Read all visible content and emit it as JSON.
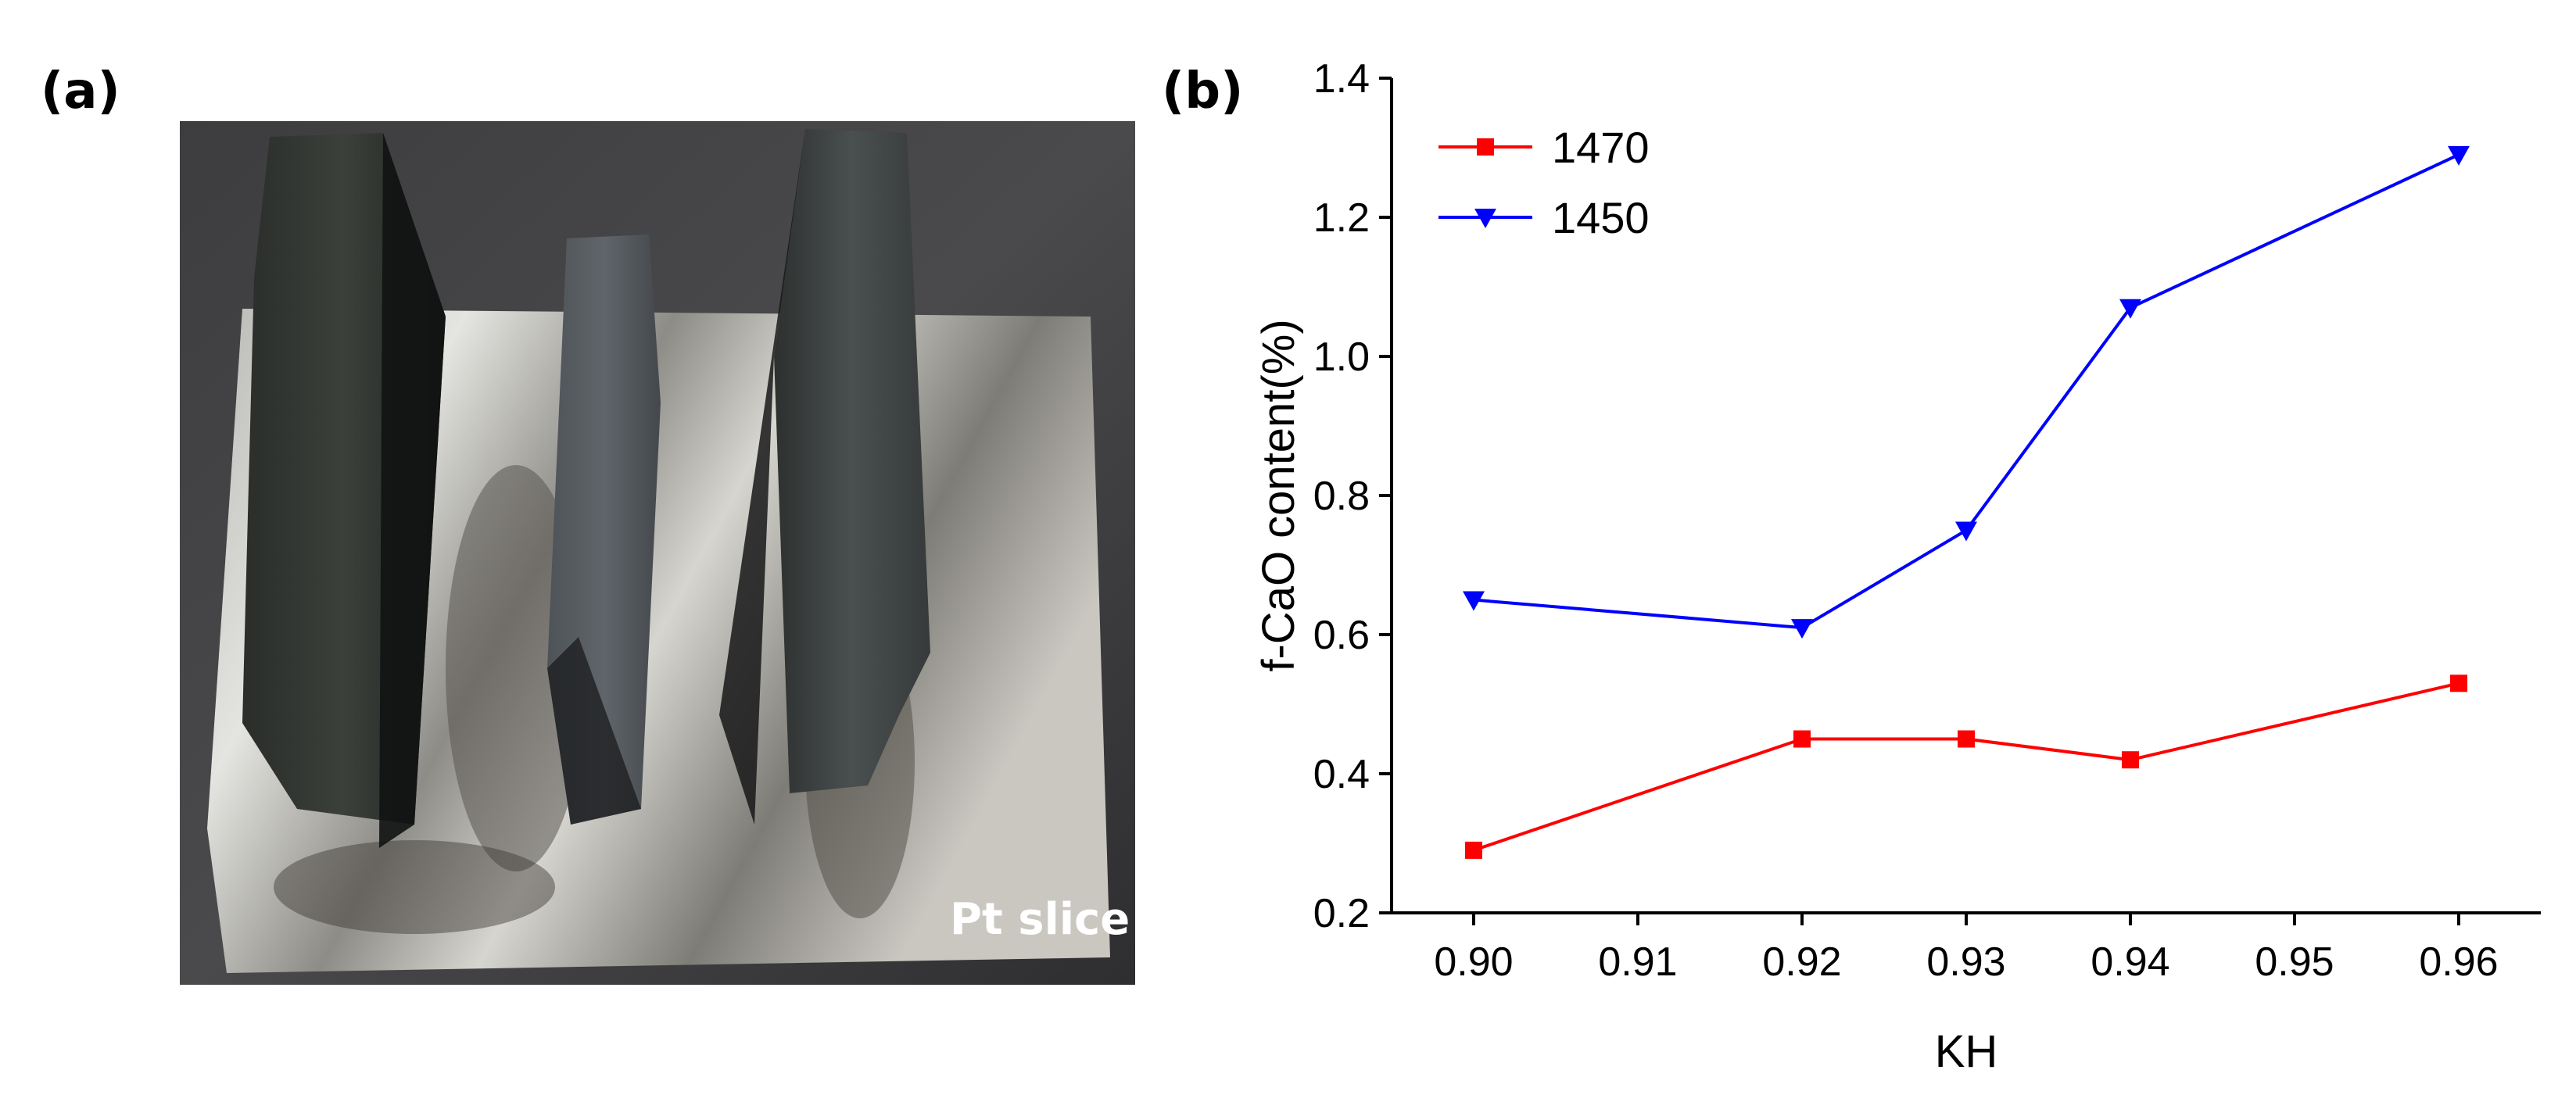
{
  "panels": {
    "a_label": "(a)",
    "b_label": "(b)",
    "photo_caption": "Pt slice"
  },
  "chart_data": {
    "type": "line",
    "x": [
      0.9,
      0.92,
      0.93,
      0.94,
      0.96
    ],
    "series": [
      {
        "name": "1470",
        "values": [
          0.29,
          0.45,
          0.45,
          0.42,
          0.53
        ],
        "color": "#ff0000",
        "marker": "square"
      },
      {
        "name": "1450",
        "values": [
          0.65,
          0.61,
          0.75,
          1.07,
          1.29
        ],
        "color": "#0000ff",
        "marker": "triangle-down"
      }
    ],
    "xlabel": "KH",
    "ylabel": "f-CaO content(%)",
    "xlim": [
      0.895,
      0.965
    ],
    "ylim": [
      0.2,
      1.4
    ],
    "xticks": [
      "0.90",
      "0.91",
      "0.92",
      "0.93",
      "0.94",
      "0.95",
      "0.96"
    ],
    "yticks": [
      "0.2",
      "0.4",
      "0.6",
      "0.8",
      "1.0",
      "1.2",
      "1.4"
    ],
    "legend": "top-left",
    "grid": false
  }
}
